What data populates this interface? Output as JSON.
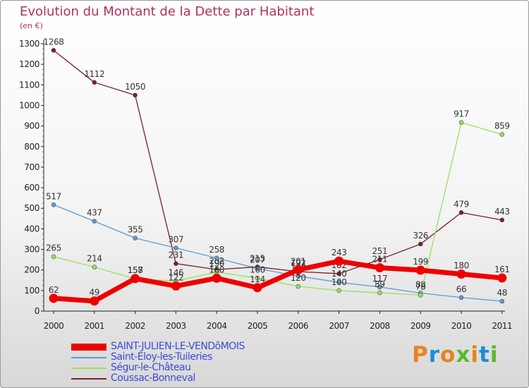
{
  "header": {
    "title": "Evolution du Montant de la Dette par Habitant",
    "subtitle": "(en €)"
  },
  "logo": {
    "text": "Proxiti",
    "colors": [
      "#e8821e",
      "#1a8fd6",
      "#e8821e",
      "#5ab82e",
      "#e8821e",
      "#1a8fd6",
      "#5ab82e"
    ]
  },
  "chart_data": {
    "type": "line",
    "title": "Evolution du Montant de la Dette par Habitant",
    "subtitle": "(en €)",
    "x": [
      "2000",
      "2001",
      "2002",
      "2003",
      "2004",
      "2005",
      "2006",
      "2007",
      "2008",
      "2009",
      "2010",
      "2011"
    ],
    "ylim": [
      0,
      1300
    ],
    "yticks": [
      0,
      100,
      200,
      300,
      400,
      500,
      600,
      700,
      800,
      900,
      1000,
      1100,
      1200,
      1300
    ],
    "grid": false,
    "legend_position": "bottom-left",
    "series": [
      {
        "name": "Coussac-Bonneval",
        "color": "#7a1f1f",
        "values": [
          1268,
          1112,
          1050,
          231,
          202,
          215,
          192,
          182,
          251,
          326,
          479,
          443
        ]
      },
      {
        "name": "Saint-Éloy-les-Tuileries",
        "color": "#5a9bd5",
        "values": [
          517,
          437,
          355,
          307,
          258,
          207,
          170,
          140,
          117,
          88,
          66,
          48
        ]
      },
      {
        "name": "Ségur-le-Château",
        "color": "#99e05a",
        "values": [
          265,
          214,
          157,
          146,
          190,
          160,
          120,
          100,
          89,
          78,
          917,
          859
        ]
      },
      {
        "name": "SAINT-JULIEN-LE-VENDôMOIS",
        "color": "#ee0000",
        "values": [
          62,
          49,
          158,
          122,
          160,
          114,
          201,
          243,
          211,
          199,
          180,
          161
        ]
      }
    ]
  }
}
